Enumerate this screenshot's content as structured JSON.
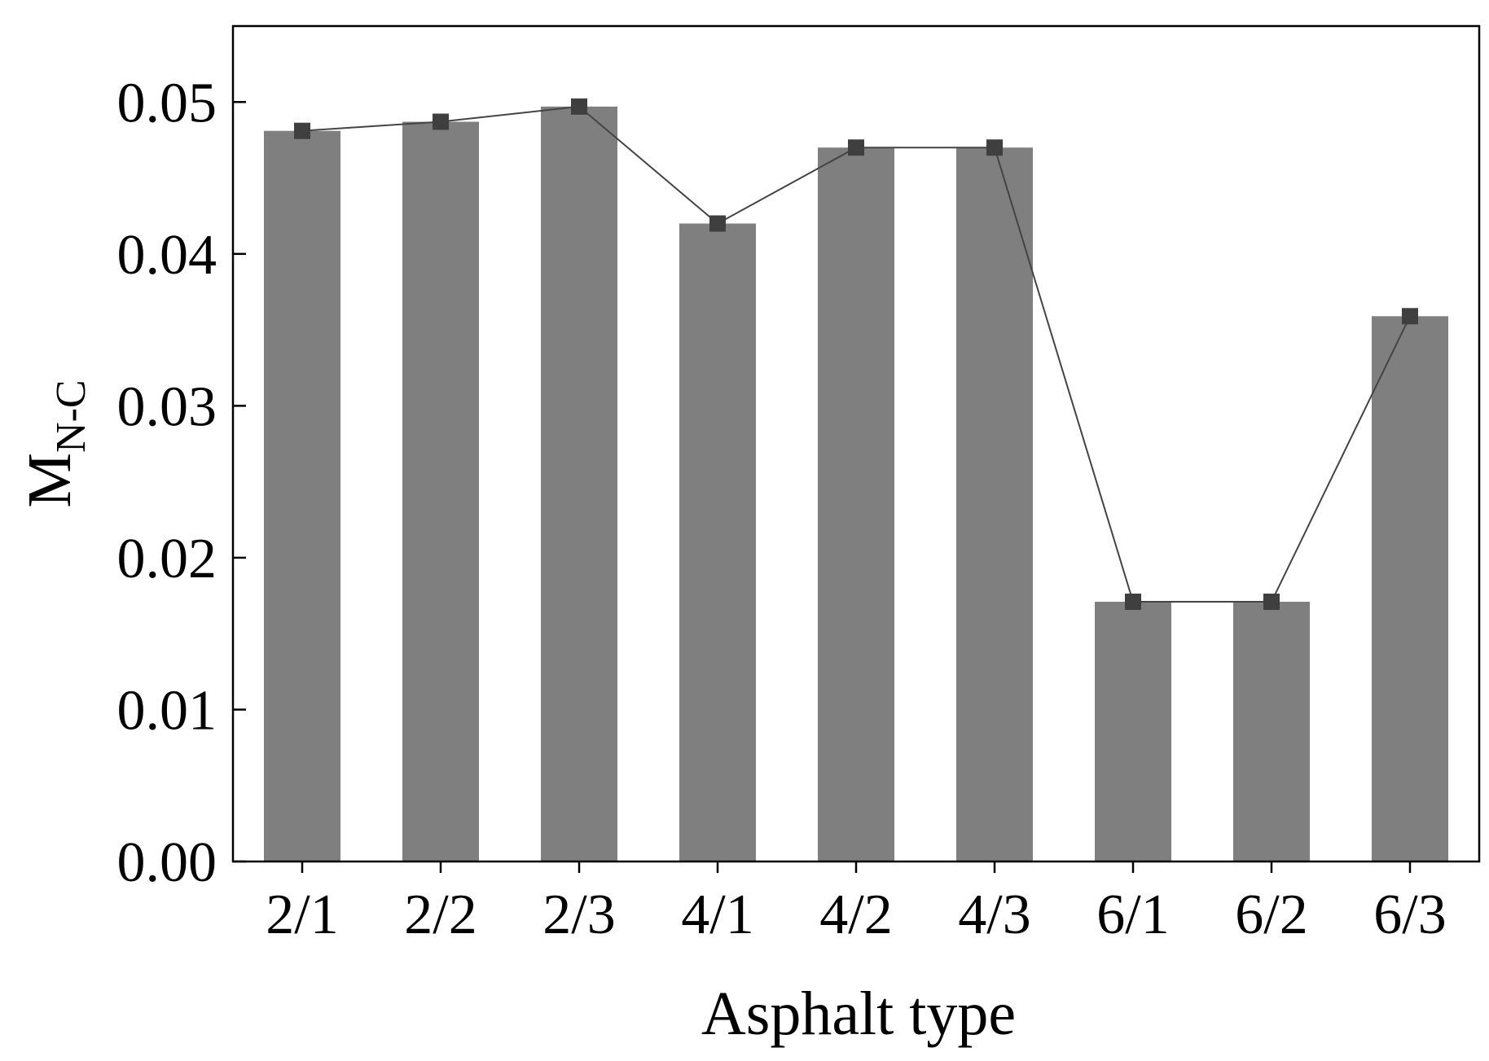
{
  "chart_data": {
    "type": "bar",
    "categories": [
      "2/1",
      "2/2",
      "2/3",
      "4/1",
      "4/2",
      "4/3",
      "6/1",
      "6/2",
      "6/3"
    ],
    "values": [
      0.0481,
      0.0487,
      0.0497,
      0.042,
      0.047,
      0.047,
      0.0171,
      0.0171,
      0.0359
    ],
    "overlay_line": true,
    "title": "",
    "xlabel": "Asphalt type",
    "ylabel": "M",
    "ylabel_subscript": "N-C",
    "ylim": [
      0,
      0.055
    ],
    "yticks": [
      "0.00",
      "0.01",
      "0.02",
      "0.03",
      "0.04",
      "0.05"
    ],
    "ytick_values": [
      0,
      0.01,
      0.02,
      0.03,
      0.04,
      0.05
    ],
    "grid": false,
    "legend": "none",
    "colors": {
      "bar": "#7f7f7f",
      "line": "#444444",
      "marker": "#3f3f3f",
      "axis": "#000000"
    }
  }
}
